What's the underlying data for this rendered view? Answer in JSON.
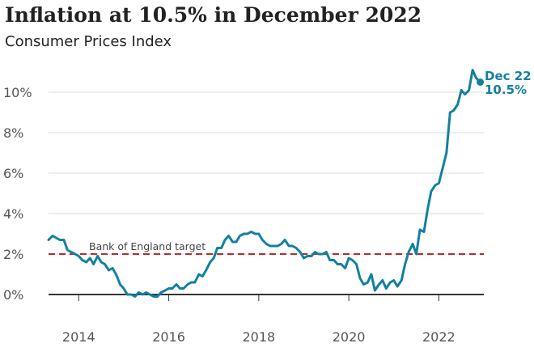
{
  "chart_data": {
    "type": "line",
    "title": "Inflation at 10.5% in December 2022",
    "subtitle": "Consumer Prices Index",
    "xlabel": "",
    "ylabel": "",
    "xlim": [
      2013.33,
      2023.0
    ],
    "ylim": [
      -0.6,
      11.2
    ],
    "x_ticks": [
      2014,
      2016,
      2018,
      2020,
      2022
    ],
    "x_tick_labels": [
      "2014",
      "2016",
      "2018",
      "2020",
      "2022"
    ],
    "y_ticks": [
      0,
      2,
      4,
      6,
      8,
      10
    ],
    "y_tick_labels": [
      "0%",
      "2%",
      "4%",
      "6%",
      "8%",
      "10%"
    ],
    "grid": "horizontal",
    "colors": {
      "line": "#1380A1",
      "target": "#B32E2E",
      "gridline": "#DDDDDD",
      "zero_line": "#333333"
    },
    "reference_lines": [
      {
        "y": 2.0,
        "label": "Bank of England target",
        "style": "dashed"
      }
    ],
    "end_annotation": {
      "lines": [
        "Dec 22",
        "10.5%"
      ]
    },
    "series": [
      {
        "x": [
          2013.33,
          2013.42,
          2013.5,
          2013.58,
          2013.67,
          2013.75,
          2013.83,
          2013.92,
          2014.0,
          2014.08,
          2014.17,
          2014.25,
          2014.33,
          2014.42,
          2014.5,
          2014.58,
          2014.67,
          2014.75,
          2014.83,
          2014.92,
          2015.0,
          2015.08,
          2015.17,
          2015.25,
          2015.33,
          2015.42,
          2015.5,
          2015.58,
          2015.67,
          2015.75,
          2015.83,
          2015.92,
          2016.0,
          2016.08,
          2016.17,
          2016.25,
          2016.33,
          2016.42,
          2016.5,
          2016.58,
          2016.67,
          2016.75,
          2016.83,
          2016.92,
          2017.0,
          2017.08,
          2017.17,
          2017.25,
          2017.33,
          2017.42,
          2017.5,
          2017.58,
          2017.67,
          2017.75,
          2017.83,
          2017.92,
          2018.0,
          2018.08,
          2018.17,
          2018.25,
          2018.33,
          2018.42,
          2018.5,
          2018.58,
          2018.67,
          2018.75,
          2018.83,
          2018.92,
          2019.0,
          2019.08,
          2019.17,
          2019.25,
          2019.33,
          2019.42,
          2019.5,
          2019.58,
          2019.67,
          2019.75,
          2019.83,
          2019.92,
          2020.0,
          2020.08,
          2020.17,
          2020.25,
          2020.33,
          2020.42,
          2020.5,
          2020.58,
          2020.67,
          2020.75,
          2020.83,
          2020.92,
          2021.0,
          2021.08,
          2021.17,
          2021.25,
          2021.33,
          2021.42,
          2021.5,
          2021.58,
          2021.67,
          2021.75,
          2021.83,
          2021.92,
          2022.0,
          2022.08,
          2022.17,
          2022.25,
          2022.33,
          2022.42,
          2022.5,
          2022.58,
          2022.67,
          2022.75,
          2022.83,
          2022.92
        ],
        "values": [
          2.7,
          2.9,
          2.8,
          2.7,
          2.7,
          2.2,
          2.1,
          2.0,
          1.9,
          1.7,
          1.6,
          1.8,
          1.5,
          1.9,
          1.6,
          1.5,
          1.2,
          1.3,
          1.0,
          0.5,
          0.3,
          0.0,
          0.0,
          -0.1,
          0.1,
          0.0,
          0.1,
          0.0,
          -0.1,
          -0.1,
          0.1,
          0.2,
          0.3,
          0.3,
          0.5,
          0.3,
          0.3,
          0.5,
          0.6,
          0.6,
          1.0,
          0.9,
          1.2,
          1.6,
          1.8,
          2.3,
          2.3,
          2.7,
          2.9,
          2.6,
          2.6,
          2.9,
          3.0,
          3.0,
          3.1,
          3.0,
          3.0,
          2.7,
          2.5,
          2.4,
          2.4,
          2.4,
          2.5,
          2.7,
          2.4,
          2.4,
          2.3,
          2.1,
          1.8,
          1.9,
          1.9,
          2.1,
          2.0,
          2.0,
          2.1,
          1.7,
          1.7,
          1.5,
          1.5,
          1.3,
          1.8,
          1.7,
          1.5,
          0.8,
          0.5,
          0.6,
          1.0,
          0.2,
          0.5,
          0.7,
          0.3,
          0.6,
          0.7,
          0.4,
          0.7,
          1.5,
          2.1,
          2.5,
          2.0,
          3.2,
          3.1,
          4.2,
          5.1,
          5.4,
          5.5,
          6.2,
          7.0,
          9.0,
          9.1,
          9.4,
          10.1,
          9.9,
          10.1,
          11.1,
          10.7,
          10.5
        ]
      }
    ]
  }
}
